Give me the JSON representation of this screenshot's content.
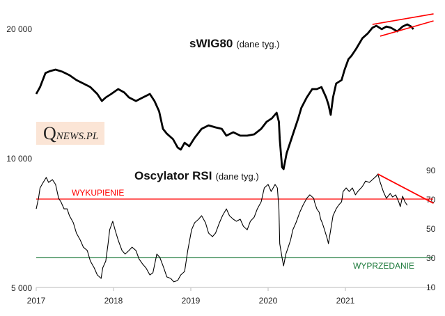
{
  "chart_data": [
    {
      "type": "line",
      "title": "sWIG80",
      "subtitle": "(dane tyg.)",
      "yscale": "log",
      "ylim": [
        5000,
        20000
      ],
      "xlim": [
        2017,
        2022.3
      ],
      "y_ticks": [
        {
          "value": 5000,
          "label": "5 000"
        },
        {
          "value": 10000,
          "label": "10 000"
        },
        {
          "value": 20000,
          "label": "20 000"
        }
      ],
      "x_ticks": [
        {
          "value": 2017,
          "label": "2017"
        },
        {
          "value": 2018,
          "label": "2018"
        },
        {
          "value": 2019,
          "label": "2019"
        },
        {
          "value": 2020,
          "label": "2020"
        },
        {
          "value": 2021,
          "label": "2021"
        }
      ],
      "series": [
        {
          "name": "sWIG80",
          "color": "#000000",
          "points": [
            [
              2017.0,
              14090
            ],
            [
              2017.05,
              14620
            ],
            [
              2017.12,
              15760
            ],
            [
              2017.18,
              15930
            ],
            [
              2017.25,
              16050
            ],
            [
              2017.34,
              15870
            ],
            [
              2017.43,
              15580
            ],
            [
              2017.52,
              15180
            ],
            [
              2017.61,
              14900
            ],
            [
              2017.7,
              14620
            ],
            [
              2017.79,
              14090
            ],
            [
              2017.85,
              13570
            ],
            [
              2017.9,
              13830
            ],
            [
              2017.97,
              14090
            ],
            [
              2018.06,
              14460
            ],
            [
              2018.14,
              14200
            ],
            [
              2018.2,
              13830
            ],
            [
              2018.29,
              13570
            ],
            [
              2018.38,
              13830
            ],
            [
              2018.47,
              14090
            ],
            [
              2018.53,
              13570
            ],
            [
              2018.59,
              12840
            ],
            [
              2018.64,
              11690
            ],
            [
              2018.69,
              11390
            ],
            [
              2018.77,
              11060
            ],
            [
              2018.83,
              10580
            ],
            [
              2018.87,
              10460
            ],
            [
              2018.92,
              10850
            ],
            [
              2018.98,
              10650
            ],
            [
              2019.05,
              11140
            ],
            [
              2019.14,
              11690
            ],
            [
              2019.23,
              11910
            ],
            [
              2019.32,
              11780
            ],
            [
              2019.4,
              11690
            ],
            [
              2019.46,
              11270
            ],
            [
              2019.55,
              11480
            ],
            [
              2019.64,
              11270
            ],
            [
              2019.73,
              11270
            ],
            [
              2019.82,
              11350
            ],
            [
              2019.91,
              11690
            ],
            [
              2019.98,
              12140
            ],
            [
              2020.05,
              12370
            ],
            [
              2020.11,
              12740
            ],
            [
              2020.14,
              12140
            ],
            [
              2020.15,
              11060
            ],
            [
              2020.18,
              9530
            ],
            [
              2020.2,
              9420
            ],
            [
              2020.24,
              10260
            ],
            [
              2020.3,
              11060
            ],
            [
              2020.33,
              11480
            ],
            [
              2020.39,
              12370
            ],
            [
              2020.43,
              13080
            ],
            [
              2020.5,
              13830
            ],
            [
              2020.57,
              14460
            ],
            [
              2020.63,
              14460
            ],
            [
              2020.69,
              14620
            ],
            [
              2020.75,
              13830
            ],
            [
              2020.78,
              13320
            ],
            [
              2020.81,
              12600
            ],
            [
              2020.84,
              13830
            ],
            [
              2020.88,
              14900
            ],
            [
              2020.95,
              15180
            ],
            [
              2020.99,
              16050
            ],
            [
              2021.04,
              16980
            ],
            [
              2021.08,
              17300
            ],
            [
              2021.14,
              17950
            ],
            [
              2021.22,
              18990
            ],
            [
              2021.29,
              19490
            ],
            [
              2021.35,
              20080
            ],
            [
              2021.4,
              20300
            ],
            [
              2021.47,
              19930
            ],
            [
              2021.53,
              20220
            ],
            [
              2021.59,
              20080
            ],
            [
              2021.67,
              19700
            ],
            [
              2021.74,
              20220
            ],
            [
              2021.8,
              20450
            ],
            [
              2021.85,
              20220
            ],
            [
              2021.88,
              19930
            ]
          ]
        }
      ],
      "trendlines": [
        {
          "name": "channel-top",
          "color": "#ff0000",
          "from": [
            2021.35,
            20450
          ],
          "to": [
            2022.14,
            21630
          ]
        },
        {
          "name": "channel-bottom",
          "color": "#ff0000",
          "from": [
            2021.45,
            19200
          ],
          "to": [
            2022.14,
            20840
          ]
        }
      ]
    },
    {
      "type": "line",
      "title": "Oscylator RSI",
      "subtitle": "(dane tyg.)",
      "ylim": [
        10,
        90
      ],
      "y_ticks": [
        {
          "value": 10,
          "label": "10"
        },
        {
          "value": 30,
          "label": "30"
        },
        {
          "value": 50,
          "label": "50"
        },
        {
          "value": 70,
          "label": "70"
        },
        {
          "value": 90,
          "label": "90"
        }
      ],
      "series": [
        {
          "name": "RSI",
          "color": "#000000",
          "points": [
            [
              2017.0,
              63.3
            ],
            [
              2017.03,
              70.5
            ],
            [
              2017.05,
              77.6
            ],
            [
              2017.09,
              81.4
            ],
            [
              2017.13,
              84.8
            ],
            [
              2017.16,
              81.4
            ],
            [
              2017.21,
              83.3
            ],
            [
              2017.25,
              80.0
            ],
            [
              2017.29,
              70.5
            ],
            [
              2017.32,
              68.1
            ],
            [
              2017.36,
              63.3
            ],
            [
              2017.4,
              63.3
            ],
            [
              2017.43,
              58.6
            ],
            [
              2017.48,
              53.8
            ],
            [
              2017.52,
              46.7
            ],
            [
              2017.57,
              41.9
            ],
            [
              2017.61,
              37.1
            ],
            [
              2017.66,
              34.8
            ],
            [
              2017.7,
              27.6
            ],
            [
              2017.75,
              22.9
            ],
            [
              2017.79,
              18.1
            ],
            [
              2017.84,
              15.7
            ],
            [
              2017.86,
              22.9
            ],
            [
              2017.9,
              27.6
            ],
            [
              2017.93,
              39.5
            ],
            [
              2017.95,
              49.0
            ],
            [
              2017.99,
              54.8
            ],
            [
              2018.02,
              49.0
            ],
            [
              2018.06,
              41.9
            ],
            [
              2018.11,
              34.8
            ],
            [
              2018.15,
              32.4
            ],
            [
              2018.2,
              34.8
            ],
            [
              2018.24,
              37.1
            ],
            [
              2018.29,
              34.8
            ],
            [
              2018.33,
              29.1
            ],
            [
              2018.38,
              25.3
            ],
            [
              2018.42,
              22.9
            ],
            [
              2018.47,
              18.1
            ],
            [
              2018.51,
              19.6
            ],
            [
              2018.56,
              32.4
            ],
            [
              2018.6,
              30.0
            ],
            [
              2018.65,
              22.9
            ],
            [
              2018.69,
              16.7
            ],
            [
              2018.74,
              15.7
            ],
            [
              2018.78,
              13.4
            ],
            [
              2018.83,
              14.3
            ],
            [
              2018.87,
              18.1
            ],
            [
              2018.92,
              20.5
            ],
            [
              2018.96,
              34.8
            ],
            [
              2019.01,
              49.0
            ],
            [
              2019.05,
              53.8
            ],
            [
              2019.1,
              56.2
            ],
            [
              2019.14,
              58.6
            ],
            [
              2019.19,
              53.8
            ],
            [
              2019.23,
              46.7
            ],
            [
              2019.28,
              44.3
            ],
            [
              2019.32,
              46.7
            ],
            [
              2019.37,
              53.8
            ],
            [
              2019.41,
              58.6
            ],
            [
              2019.46,
              63.3
            ],
            [
              2019.5,
              58.6
            ],
            [
              2019.55,
              56.2
            ],
            [
              2019.59,
              54.8
            ],
            [
              2019.64,
              56.2
            ],
            [
              2019.68,
              51.4
            ],
            [
              2019.73,
              49.0
            ],
            [
              2019.77,
              54.8
            ],
            [
              2019.82,
              57.6
            ],
            [
              2019.86,
              63.3
            ],
            [
              2019.91,
              68.1
            ],
            [
              2019.95,
              77.6
            ],
            [
              2020.0,
              80.0
            ],
            [
              2020.04,
              75.2
            ],
            [
              2020.09,
              80.0
            ],
            [
              2020.12,
              77.6
            ],
            [
              2020.14,
              63.3
            ],
            [
              2020.15,
              39.5
            ],
            [
              2020.18,
              30.0
            ],
            [
              2020.2,
              24.3
            ],
            [
              2020.23,
              32.4
            ],
            [
              2020.26,
              37.1
            ],
            [
              2020.29,
              41.9
            ],
            [
              2020.32,
              49.0
            ],
            [
              2020.36,
              53.8
            ],
            [
              2020.41,
              61.0
            ],
            [
              2020.45,
              65.7
            ],
            [
              2020.5,
              70.5
            ],
            [
              2020.54,
              72.9
            ],
            [
              2020.59,
              70.5
            ],
            [
              2020.6,
              68.1
            ],
            [
              2020.63,
              63.3
            ],
            [
              2020.66,
              61.0
            ],
            [
              2020.68,
              56.2
            ],
            [
              2020.7,
              53.8
            ],
            [
              2020.73,
              49.0
            ],
            [
              2020.77,
              41.9
            ],
            [
              2020.78,
              39.5
            ],
            [
              2020.81,
              49.0
            ],
            [
              2020.84,
              58.6
            ],
            [
              2020.88,
              63.3
            ],
            [
              2020.91,
              65.7
            ],
            [
              2020.95,
              68.1
            ],
            [
              2020.97,
              75.2
            ],
            [
              2021.01,
              77.6
            ],
            [
              2021.05,
              75.2
            ],
            [
              2021.09,
              77.6
            ],
            [
              2021.13,
              72.9
            ],
            [
              2021.16,
              75.2
            ],
            [
              2021.22,
              78.6
            ],
            [
              2021.26,
              82.3
            ],
            [
              2021.31,
              81.4
            ],
            [
              2021.35,
              83.3
            ],
            [
              2021.4,
              85.7
            ],
            [
              2021.42,
              87.1
            ],
            [
              2021.45,
              81.4
            ],
            [
              2021.49,
              75.2
            ],
            [
              2021.53,
              70.5
            ],
            [
              2021.58,
              73.8
            ],
            [
              2021.61,
              71.4
            ],
            [
              2021.65,
              72.9
            ],
            [
              2021.69,
              68.1
            ],
            [
              2021.71,
              64.8
            ],
            [
              2021.74,
              72.0
            ],
            [
              2021.77,
              68.1
            ],
            [
              2021.8,
              65.7
            ]
          ]
        }
      ],
      "levels": [
        {
          "value": 70,
          "label": "WYKUPIENIE",
          "color": "#ff0000"
        },
        {
          "value": 30,
          "label": "WYPRZEDANIE",
          "color": "#1e7a3c"
        }
      ],
      "trendlines": [
        {
          "name": "rsi-downtrend",
          "color": "#ff0000",
          "from": [
            2021.42,
            87.1
          ],
          "to": [
            2022.14,
            67.1
          ]
        }
      ]
    }
  ],
  "logo": {
    "q": "Q",
    "rest": "NEWS.PL",
    "bg": "#fbe5d6"
  }
}
